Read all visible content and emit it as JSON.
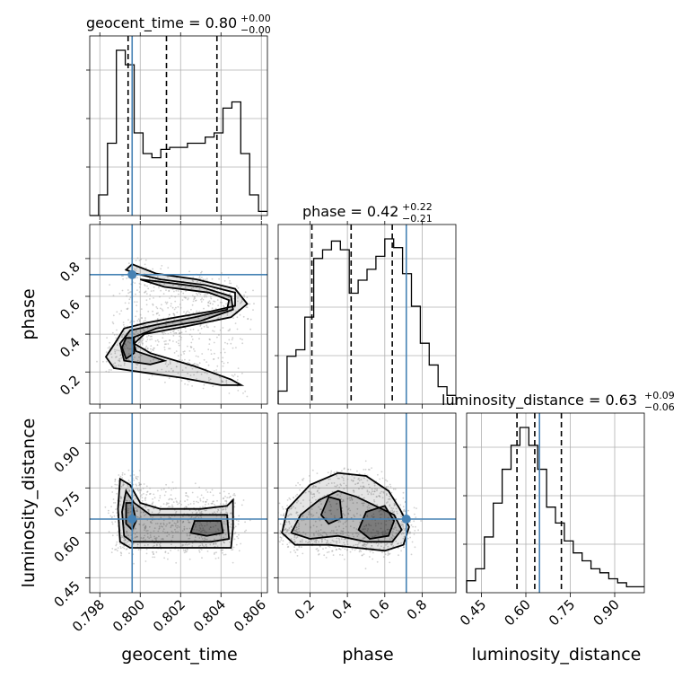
{
  "titles": {
    "geocent_time": {
      "main": "geocent_time = 0.80",
      "plus": "+0.00",
      "minus": "−0.00"
    },
    "phase": {
      "main": "phase = 0.42",
      "plus": "+0.22",
      "minus": "−0.21"
    },
    "luminosity_distance": {
      "main": "luminosity_distance = 0.63",
      "plus": "+0.09",
      "minus": "−0.06"
    }
  },
  "axis_labels": {
    "geocent_time": "geocent_time",
    "phase": "phase",
    "luminosity_distance": "luminosity_distance"
  },
  "colors": {
    "truth": "#4682b4",
    "contour": "#000000",
    "grid": "#b0b0b0",
    "points": "#9a9a9a"
  },
  "chart_data": {
    "type": "corner",
    "parameters": [
      "geocent_time",
      "phase",
      "luminosity_distance"
    ],
    "ranges": {
      "geocent_time": [
        0.7975,
        0.8063
      ],
      "phase": [
        0.03,
        0.98
      ],
      "luminosity_distance": [
        0.4,
        1.0
      ]
    },
    "ticks": {
      "geocent_time": {
        "values": [
          0.798,
          0.8,
          0.802,
          0.804,
          0.806
        ],
        "labels": [
          "0.798",
          "0.800",
          "0.802",
          "0.804",
          "0.806"
        ]
      },
      "phase": {
        "values": [
          0.2,
          0.4,
          0.6,
          0.8
        ],
        "labels": [
          "0.2",
          "0.4",
          "0.6",
          "0.8"
        ]
      },
      "luminosity_distance": {
        "values": [
          0.45,
          0.6,
          0.75,
          0.9
        ],
        "labels": [
          "0.45",
          "0.60",
          "0.75",
          "0.90"
        ]
      }
    },
    "truths": {
      "geocent_time": 0.7996,
      "phase": 0.715,
      "luminosity_distance": 0.646
    },
    "quantiles": {
      "geocent_time": [
        0.7994,
        0.8013,
        0.8038
      ],
      "phase": [
        0.21,
        0.42,
        0.64
      ],
      "luminosity_distance": [
        0.57,
        0.63,
        0.72
      ]
    },
    "histograms": {
      "geocent_time": {
        "edges_start": 0.7975,
        "bin_width": 0.00044,
        "counts": [
          0,
          0.1,
          0.35,
          0.8,
          0.73,
          0.4,
          0.3,
          0.28,
          0.32,
          0.33,
          0.33,
          0.35,
          0.35,
          0.38,
          0.4,
          0.52,
          0.55,
          0.3,
          0.1,
          0.02
        ]
      },
      "phase": {
        "edges_start": 0.03,
        "bin_width": 0.0475,
        "counts": [
          0.06,
          0.22,
          0.25,
          0.4,
          0.67,
          0.71,
          0.75,
          0.71,
          0.51,
          0.57,
          0.62,
          0.68,
          0.76,
          0.72,
          0.6,
          0.45,
          0.28,
          0.18,
          0.08,
          0.04
        ]
      },
      "luminosity_distance": {
        "edges_start": 0.4,
        "bin_width": 0.03,
        "counts": [
          0.06,
          0.12,
          0.28,
          0.45,
          0.62,
          0.74,
          0.83,
          0.74,
          0.62,
          0.43,
          0.35,
          0.26,
          0.2,
          0.16,
          0.12,
          0.1,
          0.07,
          0.05,
          0.03,
          0.03
        ]
      }
    },
    "scatter_2d": {
      "phase_vs_geocent_time": {
        "x": "geocent_time",
        "y": "phase"
      },
      "luminosity_distance_vs_geocent_time": {
        "x": "geocent_time",
        "y": "luminosity_distance"
      },
      "luminosity_distance_vs_phase": {
        "x": "phase",
        "y": "luminosity_distance"
      }
    },
    "contours": {
      "phase_vs_geocent_time": [
        [
          [
            0.7988,
            0.36
          ],
          [
            0.7992,
            0.43
          ],
          [
            0.8003,
            0.46
          ],
          [
            0.8018,
            0.49
          ],
          [
            0.8035,
            0.52
          ],
          [
            0.8047,
            0.55
          ],
          [
            0.8047,
            0.62
          ],
          [
            0.8032,
            0.66
          ],
          [
            0.801,
            0.69
          ],
          [
            0.7998,
            0.72
          ],
          [
            0.7993,
            0.74
          ],
          [
            0.7996,
            0.77
          ],
          [
            0.8008,
            0.72
          ],
          [
            0.8028,
            0.69
          ],
          [
            0.8047,
            0.64
          ],
          [
            0.8053,
            0.56
          ],
          [
            0.8045,
            0.49
          ],
          [
            0.8022,
            0.44
          ],
          [
            0.8002,
            0.4
          ],
          [
            0.7997,
            0.35
          ],
          [
            0.8005,
            0.3
          ],
          [
            0.8027,
            0.23
          ],
          [
            0.8045,
            0.16
          ],
          [
            0.805,
            0.13
          ],
          [
            0.804,
            0.13
          ],
          [
            0.802,
            0.17
          ],
          [
            0.8,
            0.2
          ],
          [
            0.7987,
            0.22
          ],
          [
            0.7983,
            0.28
          ],
          [
            0.7988,
            0.36
          ]
        ],
        [
          [
            0.799,
            0.35
          ],
          [
            0.7995,
            0.42
          ],
          [
            0.8008,
            0.45
          ],
          [
            0.8027,
            0.49
          ],
          [
            0.8043,
            0.53
          ],
          [
            0.8044,
            0.58
          ],
          [
            0.8034,
            0.62
          ],
          [
            0.8012,
            0.65
          ],
          [
            0.8,
            0.69
          ],
          [
            0.8008,
            0.68
          ],
          [
            0.803,
            0.65
          ],
          [
            0.8045,
            0.6
          ],
          [
            0.8046,
            0.53
          ],
          [
            0.803,
            0.47
          ],
          [
            0.8008,
            0.43
          ],
          [
            0.7996,
            0.38
          ],
          [
            0.7998,
            0.31
          ],
          [
            0.8012,
            0.26
          ],
          [
            0.8005,
            0.24
          ],
          [
            0.7992,
            0.26
          ],
          [
            0.799,
            0.35
          ]
        ],
        [
          [
            0.7991,
            0.33
          ],
          [
            0.7993,
            0.38
          ],
          [
            0.7997,
            0.38
          ],
          [
            0.7997,
            0.3
          ],
          [
            0.7993,
            0.27
          ],
          [
            0.7991,
            0.33
          ]
        ]
      ],
      "luminosity_distance_vs_geocent_time": [
        [
          [
            0.799,
            0.57
          ],
          [
            0.7989,
            0.68
          ],
          [
            0.799,
            0.78
          ],
          [
            0.7995,
            0.76
          ],
          [
            0.8,
            0.7
          ],
          [
            0.801,
            0.68
          ],
          [
            0.803,
            0.68
          ],
          [
            0.8043,
            0.69
          ],
          [
            0.8046,
            0.71
          ],
          [
            0.8046,
            0.62
          ],
          [
            0.8045,
            0.55
          ],
          [
            0.803,
            0.55
          ],
          [
            0.801,
            0.55
          ],
          [
            0.7995,
            0.55
          ],
          [
            0.799,
            0.57
          ]
        ],
        [
          [
            0.7992,
            0.59
          ],
          [
            0.7991,
            0.67
          ],
          [
            0.7993,
            0.74
          ],
          [
            0.7997,
            0.7
          ],
          [
            0.8005,
            0.66
          ],
          [
            0.8025,
            0.66
          ],
          [
            0.8043,
            0.66
          ],
          [
            0.8044,
            0.58
          ],
          [
            0.8035,
            0.57
          ],
          [
            0.801,
            0.57
          ],
          [
            0.7996,
            0.57
          ],
          [
            0.7992,
            0.59
          ]
        ],
        [
          [
            0.7993,
            0.63
          ],
          [
            0.7993,
            0.7
          ],
          [
            0.7996,
            0.7
          ],
          [
            0.7998,
            0.64
          ],
          [
            0.7996,
            0.61
          ],
          [
            0.7993,
            0.63
          ]
        ],
        [
          [
            0.8025,
            0.6
          ],
          [
            0.8027,
            0.64
          ],
          [
            0.804,
            0.64
          ],
          [
            0.8041,
            0.6
          ],
          [
            0.8033,
            0.59
          ],
          [
            0.8025,
            0.6
          ]
        ]
      ],
      "luminosity_distance_vs_phase": [
        [
          [
            0.05,
            0.6
          ],
          [
            0.08,
            0.68
          ],
          [
            0.2,
            0.76
          ],
          [
            0.35,
            0.8
          ],
          [
            0.5,
            0.79
          ],
          [
            0.62,
            0.74
          ],
          [
            0.68,
            0.68
          ],
          [
            0.73,
            0.62
          ],
          [
            0.7,
            0.56
          ],
          [
            0.6,
            0.54
          ],
          [
            0.45,
            0.55
          ],
          [
            0.3,
            0.56
          ],
          [
            0.12,
            0.56
          ],
          [
            0.05,
            0.6
          ]
        ],
        [
          [
            0.1,
            0.6
          ],
          [
            0.15,
            0.66
          ],
          [
            0.25,
            0.71
          ],
          [
            0.35,
            0.74
          ],
          [
            0.45,
            0.72
          ],
          [
            0.55,
            0.69
          ],
          [
            0.65,
            0.66
          ],
          [
            0.69,
            0.61
          ],
          [
            0.64,
            0.57
          ],
          [
            0.5,
            0.57
          ],
          [
            0.35,
            0.59
          ],
          [
            0.2,
            0.58
          ],
          [
            0.1,
            0.6
          ]
        ],
        [
          [
            0.26,
            0.66
          ],
          [
            0.3,
            0.72
          ],
          [
            0.36,
            0.71
          ],
          [
            0.37,
            0.65
          ],
          [
            0.3,
            0.63
          ],
          [
            0.26,
            0.66
          ]
        ],
        [
          [
            0.46,
            0.61
          ],
          [
            0.5,
            0.67
          ],
          [
            0.6,
            0.69
          ],
          [
            0.65,
            0.64
          ],
          [
            0.62,
            0.59
          ],
          [
            0.52,
            0.58
          ],
          [
            0.46,
            0.61
          ]
        ]
      ]
    }
  }
}
